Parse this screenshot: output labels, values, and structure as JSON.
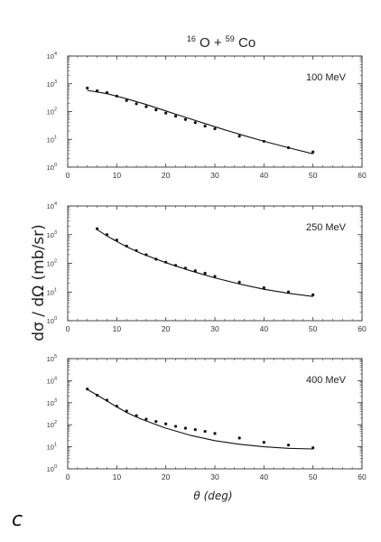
{
  "figure": {
    "reaction": {
      "pre1": "16",
      "base1": "O",
      "op": "+",
      "pre2": "59",
      "base2": "Co"
    },
    "ylabel": "dσ / dΩ  (mb/sr)",
    "xlabel": "θ (deg)",
    "caption": "c"
  },
  "chart_data": [
    {
      "type": "scatter",
      "title": "",
      "annotation": "100 MeV",
      "xlim": [
        0,
        60
      ],
      "ylim": [
        1,
        10000
      ],
      "yscale": "log",
      "xticks": [
        0,
        10,
        20,
        30,
        40,
        50,
        60
      ],
      "yticks": [
        1,
        10,
        100,
        1000,
        10000
      ],
      "ytick_labels": [
        {
          "base": "10",
          "exp": "0"
        },
        {
          "base": "10",
          "exp": "1"
        },
        {
          "base": "10",
          "exp": "2"
        },
        {
          "base": "10",
          "exp": "3"
        },
        {
          "base": "10",
          "exp": "4"
        }
      ],
      "series": [
        {
          "kind": "points",
          "x": [
            4,
            6,
            8,
            10,
            12,
            14,
            16,
            18,
            20,
            22,
            24,
            26,
            28,
            30,
            35,
            40,
            45,
            50
          ],
          "y": [
            700,
            560,
            480,
            360,
            250,
            190,
            150,
            115,
            88,
            68,
            52,
            40,
            30,
            24,
            13,
            8.5,
            5,
            3.5
          ]
        },
        {
          "kind": "line",
          "x": [
            4,
            8,
            12,
            16,
            20,
            24,
            28,
            32,
            36,
            40,
            45,
            50
          ],
          "y": [
            580,
            440,
            290,
            180,
            105,
            62,
            37,
            22,
            13.5,
            8.5,
            5,
            3
          ]
        }
      ]
    },
    {
      "type": "scatter",
      "title": "",
      "annotation": "250 MeV",
      "xlim": [
        0,
        60
      ],
      "ylim": [
        1,
        10000
      ],
      "yscale": "log",
      "xticks": [
        0,
        10,
        20,
        30,
        40,
        50,
        60
      ],
      "yticks": [
        1,
        10,
        100,
        1000,
        10000
      ],
      "ytick_labels": [
        {
          "base": "10",
          "exp": "0"
        },
        {
          "base": "10",
          "exp": "1"
        },
        {
          "base": "10",
          "exp": "2"
        },
        {
          "base": "10",
          "exp": "3"
        },
        {
          "base": "10",
          "exp": "4"
        }
      ],
      "series": [
        {
          "kind": "points",
          "x": [
            6,
            8,
            10,
            12,
            14,
            16,
            18,
            20,
            22,
            24,
            26,
            28,
            30,
            35,
            40,
            45,
            50
          ],
          "y": [
            1600,
            1000,
            650,
            400,
            280,
            200,
            140,
            110,
            85,
            68,
            55,
            45,
            35,
            22,
            14,
            10,
            8
          ]
        },
        {
          "kind": "line",
          "x": [
            6,
            8,
            10,
            12,
            15,
            20,
            25,
            30,
            35,
            40,
            45,
            50
          ],
          "y": [
            1500,
            900,
            580,
            380,
            220,
            105,
            55,
            31,
            19,
            12.5,
            9,
            7
          ]
        }
      ]
    },
    {
      "type": "scatter",
      "title": "",
      "annotation": "400 MeV",
      "xlim": [
        0,
        60
      ],
      "ylim": [
        1,
        100000
      ],
      "yscale": "log",
      "xticks": [
        0,
        10,
        20,
        30,
        40,
        50,
        60
      ],
      "yticks": [
        1,
        10,
        100,
        1000,
        10000,
        100000
      ],
      "ytick_labels": [
        {
          "base": "10",
          "exp": "0"
        },
        {
          "base": "10",
          "exp": "1"
        },
        {
          "base": "10",
          "exp": "2"
        },
        {
          "base": "10",
          "exp": "3"
        },
        {
          "base": "10",
          "exp": "4"
        },
        {
          "base": "10",
          "exp": "5"
        }
      ],
      "series": [
        {
          "kind": "points",
          "x": [
            4,
            6,
            8,
            10,
            12,
            14,
            16,
            18,
            20,
            22,
            24,
            26,
            28,
            30,
            35,
            40,
            45,
            50
          ],
          "y": [
            4200,
            2200,
            1300,
            700,
            420,
            260,
            180,
            140,
            110,
            85,
            70,
            60,
            50,
            40,
            25,
            16,
            12,
            9
          ]
        },
        {
          "kind": "line",
          "x": [
            4,
            6,
            8,
            10,
            12,
            15,
            20,
            25,
            30,
            35,
            40,
            45,
            50
          ],
          "y": [
            4000,
            2200,
            1200,
            650,
            360,
            180,
            70,
            33,
            19,
            13,
            10,
            8.5,
            8
          ]
        }
      ]
    }
  ]
}
